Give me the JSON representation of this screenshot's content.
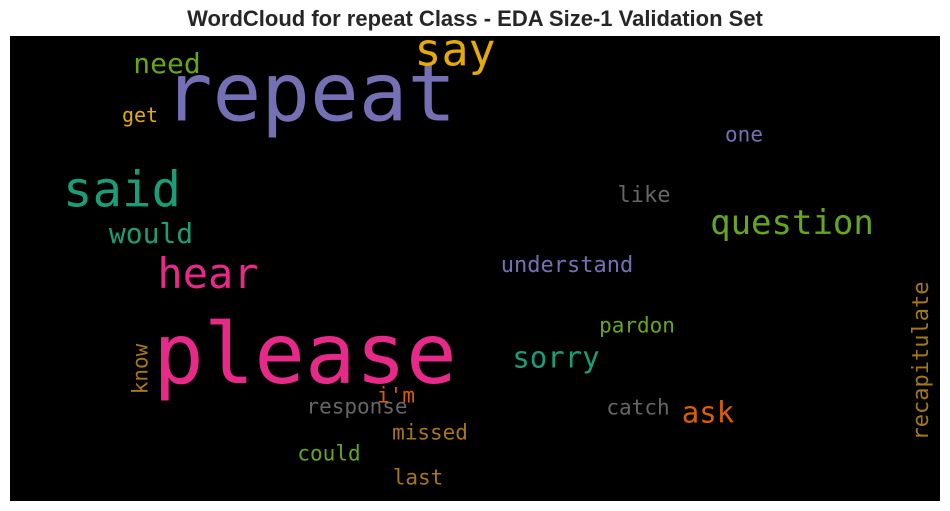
{
  "chart_data": {
    "type": "wordcloud",
    "title": "WordCloud for repeat Class - EDA Size-1 Validation Set",
    "background": "#000000",
    "words": [
      {
        "text": "please",
        "color": "#e7298a",
        "weight": 1.0,
        "orientation": "horizontal"
      },
      {
        "text": "repeat",
        "color": "#7570b3",
        "weight": 0.97,
        "orientation": "horizontal"
      },
      {
        "text": "said",
        "color": "#1b9e77",
        "weight": 0.58,
        "orientation": "horizontal"
      },
      {
        "text": "say",
        "color": "#e6ab02",
        "weight": 0.53,
        "orientation": "horizontal"
      },
      {
        "text": "hear",
        "color": "#e7298a",
        "weight": 0.5,
        "orientation": "horizontal"
      },
      {
        "text": "question",
        "color": "#66a61e",
        "weight": 0.41,
        "orientation": "horizontal"
      },
      {
        "text": "sorry",
        "color": "#1b9e77",
        "weight": 0.34,
        "orientation": "horizontal"
      },
      {
        "text": "ask",
        "color": "#d95f02",
        "weight": 0.34,
        "orientation": "horizontal"
      },
      {
        "text": "need",
        "color": "#66a61e",
        "weight": 0.33,
        "orientation": "horizontal"
      },
      {
        "text": "would",
        "color": "#1b9e77",
        "weight": 0.33,
        "orientation": "horizontal"
      },
      {
        "text": "recapitulate",
        "color": "#a6761d",
        "weight": 0.26,
        "orientation": "vertical"
      },
      {
        "text": "understand",
        "color": "#7570b3",
        "weight": 0.26,
        "orientation": "horizontal"
      },
      {
        "text": "like",
        "color": "#666666",
        "weight": 0.26,
        "orientation": "horizontal"
      },
      {
        "text": "missed",
        "color": "#a6761d",
        "weight": 0.25,
        "orientation": "horizontal"
      },
      {
        "text": "response",
        "color": "#666666",
        "weight": 0.25,
        "orientation": "horizontal"
      },
      {
        "text": "catch",
        "color": "#666666",
        "weight": 0.25,
        "orientation": "horizontal"
      },
      {
        "text": "pardon",
        "color": "#66a61e",
        "weight": 0.25,
        "orientation": "horizontal"
      },
      {
        "text": "i'm",
        "color": "#d95f02",
        "weight": 0.25,
        "orientation": "horizontal"
      },
      {
        "text": "could",
        "color": "#66a61e",
        "weight": 0.25,
        "orientation": "horizontal"
      },
      {
        "text": "last",
        "color": "#a6761d",
        "weight": 0.25,
        "orientation": "horizontal"
      },
      {
        "text": "know",
        "color": "#a6761d",
        "weight": 0.25,
        "orientation": "vertical"
      },
      {
        "text": "one",
        "color": "#7570b3",
        "weight": 0.25,
        "orientation": "horizontal"
      },
      {
        "text": "get",
        "color": "#e6ab02",
        "weight": 0.24,
        "orientation": "horizontal"
      }
    ]
  }
}
